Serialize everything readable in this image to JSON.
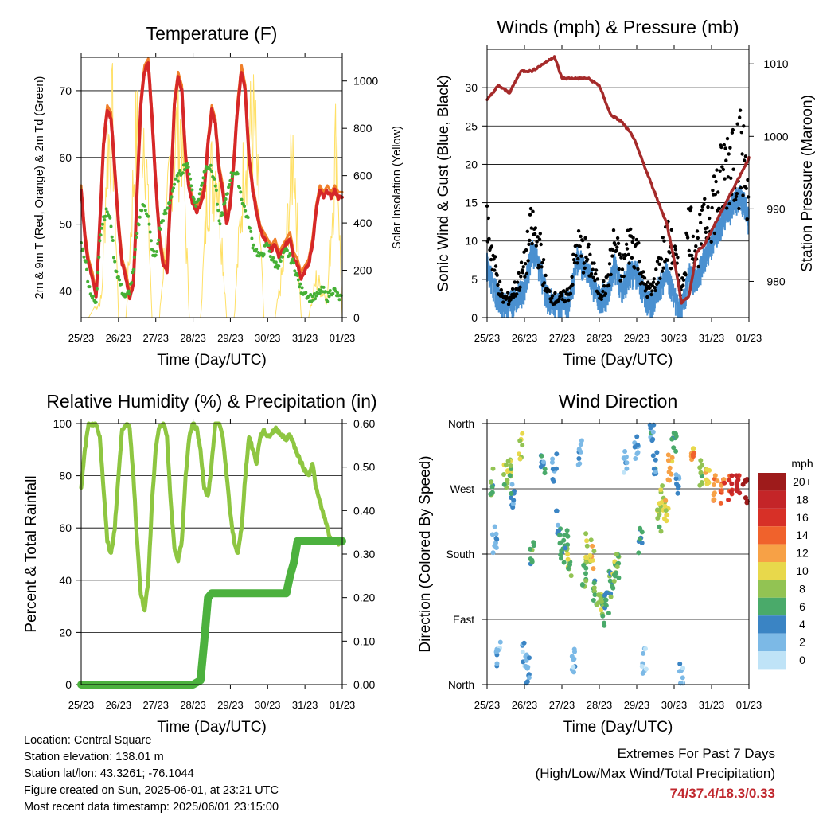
{
  "xticks": [
    "25/23",
    "26/23",
    "27/23",
    "28/23",
    "29/23",
    "30/23",
    "31/23",
    "01/23"
  ],
  "chart_data": [
    {
      "type": "line",
      "title": "Temperature (F)",
      "xlabel": "Time (Day/UTC)",
      "ylabel": "2m & 9m T (Red, Orange) & 2m Td (Green)",
      "ylabel_right": "Solar Insolation (Yellow)",
      "xlim": [
        0,
        7
      ],
      "ylim": [
        36,
        75
      ],
      "yticks": [
        "40",
        "50",
        "60",
        "70"
      ],
      "ylim_right": [
        0,
        1100
      ],
      "yticks_right": [
        "0",
        "200",
        "400",
        "600",
        "800",
        "1000"
      ],
      "colors": {
        "temp_2m": "#d62728",
        "temp_9m": "#f07f2a",
        "dewpoint": "#45b035",
        "solar": "#ffe066"
      },
      "series": [
        {
          "key": "temp_2m",
          "x": [
            0,
            0.1,
            0.2,
            0.3,
            0.4,
            0.5,
            0.6,
            0.7,
            0.8,
            0.9,
            1.0,
            1.1,
            1.2,
            1.3,
            1.4,
            1.5,
            1.6,
            1.7,
            1.8,
            1.9,
            2.0,
            2.1,
            2.2,
            2.3,
            2.4,
            2.5,
            2.6,
            2.7,
            2.8,
            2.9,
            3.0,
            3.1,
            3.2,
            3.3,
            3.4,
            3.5,
            3.6,
            3.7,
            3.8,
            3.9,
            4.0,
            4.1,
            4.2,
            4.3,
            4.4,
            4.5,
            4.6,
            4.7,
            4.8,
            4.9,
            5.0,
            5.1,
            5.2,
            5.3,
            5.4,
            5.5,
            5.6,
            5.7,
            5.8,
            5.9,
            6.0,
            6.1,
            6.2,
            6.3,
            6.4,
            6.5,
            6.6,
            6.7,
            6.8,
            6.9,
            7.0
          ],
          "y": [
            55,
            48,
            44,
            42,
            39,
            50,
            62,
            67,
            66,
            58,
            50,
            44,
            42,
            39,
            41,
            55,
            68,
            73,
            74,
            66,
            56,
            48,
            44,
            43,
            55,
            68,
            72,
            70,
            60,
            55,
            53,
            52,
            53,
            55,
            62,
            67,
            65,
            58,
            55,
            50,
            53,
            60,
            68,
            73,
            70,
            60,
            55,
            52,
            49,
            48,
            47,
            46,
            47,
            45,
            46,
            47,
            48,
            45,
            44,
            42,
            43,
            44,
            47,
            52,
            55,
            54,
            55,
            54,
            55,
            54,
            54
          ]
        },
        {
          "key": "dewpoint",
          "x": [
            0,
            0.1,
            0.2,
            0.3,
            0.4,
            0.5,
            0.6,
            0.7,
            0.8,
            0.9,
            1.0,
            1.1,
            1.2,
            1.3,
            1.4,
            1.5,
            1.6,
            1.7,
            1.8,
            1.9,
            2.0,
            2.1,
            2.2,
            2.3,
            2.4,
            2.5,
            2.6,
            2.7,
            2.8,
            2.9,
            3.0,
            3.1,
            3.2,
            3.3,
            3.4,
            3.5,
            3.6,
            3.7,
            3.8,
            3.9,
            4.0,
            4.1,
            4.2,
            4.3,
            4.4,
            4.5,
            4.6,
            4.7,
            4.8,
            4.9,
            5.0,
            5.1,
            5.2,
            5.3,
            5.4,
            5.5,
            5.6,
            5.7,
            5.8,
            5.9,
            6.0,
            6.1,
            6.2,
            6.3,
            6.4,
            6.5,
            6.6,
            6.7,
            6.8,
            6.9,
            7.0
          ],
          "y": [
            47,
            45,
            41,
            39,
            38,
            48,
            51,
            52,
            50,
            44,
            42,
            40,
            39,
            40,
            43,
            49,
            52,
            53,
            51,
            46,
            45,
            49,
            51,
            52,
            54,
            56,
            57,
            58,
            59,
            58,
            54,
            53,
            55,
            58,
            59,
            58,
            56,
            50,
            52,
            54,
            57,
            58,
            57,
            54,
            52,
            50,
            47,
            46,
            45,
            46,
            47,
            45,
            44,
            44,
            45,
            46,
            45,
            44,
            42,
            40,
            40,
            39,
            39,
            39,
            40,
            40,
            39,
            40,
            40,
            39,
            39
          ]
        },
        {
          "key": "solar",
          "x": [
            0.2,
            0.55,
            0.7,
            0.85,
            1.0,
            1.2,
            1.45,
            1.7,
            1.9,
            2.1,
            2.45,
            2.7,
            2.9,
            3.2,
            3.4,
            3.65,
            3.9,
            4.1,
            4.4,
            4.65,
            4.9,
            5.2,
            5.45,
            5.7,
            5.9,
            6.1,
            6.3,
            6.6,
            6.85,
            6.95,
            7.0
          ],
          "y": [
            0,
            100,
            900,
            1000,
            0,
            0,
            900,
            1050,
            0,
            0,
            900,
            1000,
            0,
            0,
            700,
            800,
            0,
            0,
            900,
            1000,
            0,
            0,
            300,
            900,
            0,
            0,
            200,
            100,
            1000,
            300,
            0
          ]
        }
      ]
    },
    {
      "type": "scatter",
      "title": "Winds (mph) & Pressure (mb)",
      "xlabel": "Time (Day/UTC)",
      "ylabel": "Sonic Wind & Gust (Blue, Black)",
      "ylabel_right": "Station Pressure (Maroon)",
      "xlim": [
        0,
        7
      ],
      "ylim": [
        0,
        35
      ],
      "yticks": [
        "0",
        "5",
        "10",
        "15",
        "20",
        "25",
        "30"
      ],
      "ylim_right": [
        975,
        1012
      ],
      "yticks_right": [
        "980",
        "990",
        "1000",
        "1010"
      ],
      "colors": {
        "wind": "#4a90d0",
        "gust": "#000000",
        "pressure": "#a52a2a"
      },
      "series": [
        {
          "key": "wind",
          "x": [
            0,
            0.2,
            0.4,
            0.6,
            0.8,
            1.0,
            1.2,
            1.4,
            1.6,
            1.8,
            2.0,
            2.2,
            2.4,
            2.6,
            2.8,
            3.0,
            3.2,
            3.4,
            3.6,
            3.8,
            4.0,
            4.2,
            4.4,
            4.6,
            4.8,
            5.0,
            5.2,
            5.4,
            5.6,
            5.8,
            6.0,
            6.2,
            6.4,
            6.6,
            6.8,
            7.0
          ],
          "y": [
            7,
            4,
            2,
            2,
            3,
            4,
            9,
            7,
            3,
            2,
            2,
            2,
            8,
            7,
            5,
            3,
            3,
            7,
            4,
            6,
            6,
            3,
            2,
            4,
            6,
            3,
            1,
            6,
            5,
            8,
            10,
            12,
            14,
            15,
            16,
            13
          ]
        },
        {
          "key": "gust",
          "x": [
            0,
            0.2,
            0.4,
            0.6,
            0.8,
            1.0,
            1.2,
            1.4,
            1.6,
            1.8,
            2.0,
            2.2,
            2.4,
            2.6,
            2.8,
            3.0,
            3.2,
            3.4,
            3.6,
            3.8,
            4.0,
            4.2,
            4.4,
            4.6,
            4.8,
            5.0,
            5.2,
            5.4,
            5.6,
            5.8,
            6.0,
            6.2,
            6.4,
            6.6,
            6.8,
            7.0
          ],
          "y": [
            15,
            8,
            3,
            3,
            5,
            8,
            14,
            11,
            4,
            3,
            3,
            4,
            11,
            10,
            8,
            4,
            5,
            12,
            7,
            12,
            11,
            5,
            4,
            8,
            12,
            10,
            4,
            15,
            11,
            14,
            18,
            20,
            24,
            27,
            25,
            22
          ]
        },
        {
          "key": "pressure",
          "x": [
            0,
            0.3,
            0.6,
            0.9,
            1.2,
            1.5,
            1.8,
            2.0,
            2.2,
            2.4,
            2.7,
            3.0,
            3.3,
            3.6,
            3.9,
            4.2,
            4.5,
            4.8,
            5.0,
            5.2,
            5.4,
            5.6,
            5.8,
            6.0,
            6.2,
            6.4,
            6.6,
            6.8,
            7.0
          ],
          "y": [
            1005,
            1007,
            1006,
            1009,
            1009,
            1010,
            1011,
            1008,
            1008,
            1008,
            1008,
            1007,
            1003,
            1002,
            1000,
            996,
            992,
            988,
            983,
            977,
            978,
            984,
            985,
            987,
            989,
            991,
            993,
            995,
            997
          ]
        }
      ]
    },
    {
      "type": "line",
      "title": "Relative Humidity (%) & Precipitation (in)",
      "xlabel": "Time (Day/UTC)",
      "ylabel": "Percent & Total Rainfall",
      "xlim": [
        0,
        7
      ],
      "ylim": [
        0,
        100
      ],
      "yticks": [
        "0",
        "20",
        "40",
        "60",
        "80",
        "100"
      ],
      "ylim_right": [
        0,
        0.6
      ],
      "yticks_right": [
        "0.00",
        "0.10",
        "0.20",
        "0.30",
        "0.40",
        "0.50",
        "0.60"
      ],
      "colors": {
        "rh": "#8ec641",
        "precip": "#4cb13e"
      },
      "series": [
        {
          "key": "rh",
          "x": [
            0,
            0.1,
            0.2,
            0.3,
            0.4,
            0.5,
            0.6,
            0.7,
            0.8,
            0.9,
            1.0,
            1.1,
            1.2,
            1.3,
            1.4,
            1.5,
            1.6,
            1.7,
            1.8,
            1.9,
            2.0,
            2.1,
            2.2,
            2.3,
            2.4,
            2.5,
            2.6,
            2.7,
            2.8,
            2.9,
            3.0,
            3.1,
            3.2,
            3.3,
            3.4,
            3.5,
            3.6,
            3.7,
            3.8,
            3.9,
            4.0,
            4.1,
            4.2,
            4.3,
            4.4,
            4.5,
            4.6,
            4.7,
            4.8,
            4.9,
            5.0,
            5.1,
            5.2,
            5.3,
            5.4,
            5.5,
            5.6,
            5.7,
            5.8,
            5.9,
            6.0,
            6.1,
            6.2,
            6.3,
            6.4,
            6.5,
            6.6,
            6.7,
            6.8,
            6.9,
            7.0
          ],
          "y": [
            75,
            90,
            100,
            100,
            100,
            95,
            75,
            55,
            50,
            60,
            80,
            98,
            100,
            98,
            80,
            55,
            35,
            28,
            40,
            70,
            90,
            99,
            100,
            95,
            70,
            52,
            48,
            55,
            80,
            95,
            100,
            98,
            90,
            75,
            72,
            85,
            100,
            100,
            95,
            80,
            65,
            55,
            50,
            60,
            80,
            95,
            90,
            85,
            95,
            97,
            95,
            96,
            98,
            97,
            95,
            94,
            96,
            92,
            88,
            85,
            82,
            80,
            85,
            75,
            70,
            65,
            60,
            55,
            55,
            54,
            55
          ]
        },
        {
          "key": "precip",
          "x": [
            0,
            0.5,
            1.0,
            1.5,
            2.0,
            2.5,
            3.0,
            3.2,
            3.3,
            3.4,
            3.5,
            3.7,
            4.0,
            4.5,
            5.0,
            5.5,
            5.6,
            5.7,
            5.8,
            6.0,
            6.5,
            7.0
          ],
          "y": [
            0,
            0,
            0,
            0,
            0,
            0,
            0,
            0.01,
            0.1,
            0.2,
            0.21,
            0.21,
            0.21,
            0.21,
            0.21,
            0.21,
            0.25,
            0.28,
            0.33,
            0.33,
            0.33,
            0.33
          ]
        }
      ]
    },
    {
      "type": "scatter",
      "title": "Wind Direction",
      "xlabel": "Time (Day/UTC)",
      "ylabel": "Direction (Colored By Speed)",
      "xlim": [
        0,
        7
      ],
      "ylim": [
        0,
        360
      ],
      "yticks": [
        "North",
        "East",
        "South",
        "West",
        "North"
      ],
      "legend": {
        "title": "mph",
        "labels": [
          "20+",
          "18",
          "16",
          "14",
          "12",
          "10",
          "8",
          "6",
          "4",
          "2",
          "0"
        ],
        "colors": [
          "#9e1b1b",
          "#c42528",
          "#d73027",
          "#f0622c",
          "#f7a146",
          "#e8d84b",
          "#92c353",
          "#4aaa6a",
          "#3a84c4",
          "#7cb9e6",
          "#bfe3f7"
        ]
      },
      "series": [
        {
          "name": "dir",
          "x": [
            0.1,
            0.2,
            0.3,
            0.5,
            0.6,
            0.7,
            0.9,
            1.0,
            1.1,
            1.2,
            1.5,
            1.8,
            1.9,
            2.0,
            2.1,
            2.2,
            2.3,
            2.5,
            2.6,
            2.7,
            2.8,
            2.9,
            3.0,
            3.1,
            3.2,
            3.3,
            3.4,
            3.5,
            3.7,
            4.0,
            4.1,
            4.2,
            4.4,
            4.5,
            4.6,
            4.7,
            4.8,
            4.9,
            5.0,
            5.1,
            5.2,
            5.5,
            5.7,
            5.9,
            6.1,
            6.3,
            6.5,
            6.7,
            6.9
          ],
          "y": [
            280,
            200,
            40,
            290,
            300,
            260,
            330,
            40,
            20,
            180,
            310,
            300,
            220,
            180,
            200,
            170,
            30,
            320,
            150,
            190,
            180,
            130,
            120,
            100,
            110,
            140,
            150,
            160,
            310,
            330,
            200,
            30,
            350,
            310,
            230,
            260,
            240,
            300,
            340,
            280,
            10,
            320,
            290,
            280,
            270,
            270,
            270,
            280,
            270
          ],
          "speed": [
            6,
            2,
            2,
            8,
            8,
            4,
            9,
            2,
            3,
            6,
            4,
            3,
            4,
            5,
            6,
            8,
            2,
            2,
            7,
            9,
            10,
            6,
            8,
            7,
            5,
            6,
            8,
            7,
            2,
            3,
            5,
            1,
            4,
            4,
            8,
            9,
            10,
            12,
            6,
            3,
            2,
            12,
            8,
            10,
            13,
            14,
            16,
            18,
            20
          ]
        }
      ]
    }
  ],
  "info": {
    "location": "Location: Central Square",
    "elevation": "Station elevation: 138.01 m",
    "latlon": "Station lat/lon: 43.3261; -76.1044",
    "created": "Figure created on Sun, 2025-06-01, at 23:21 UTC",
    "recent": "Most recent data timestamp: 2025/06/01 23:15:00"
  },
  "extremes": {
    "title": "Extremes For Past 7 Days",
    "subtitle": "(High/Low/Max Wind/Total Precipitation)",
    "values": "74/37.4/18.3/0.33"
  }
}
